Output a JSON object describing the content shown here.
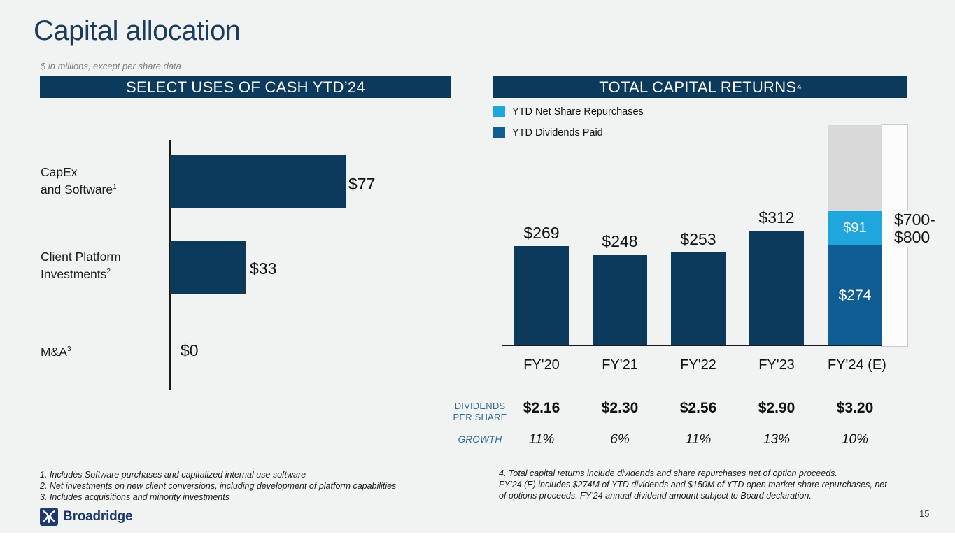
{
  "slide": {
    "title": "Capital allocation",
    "subtitle": "$ in millions, except per share data"
  },
  "left_panel": {
    "header": "SELECT USES OF CASH YTD’24",
    "rows": [
      {
        "label_line1": "CapEx",
        "label_line2": "and Software",
        "sup": "1",
        "value": 77,
        "value_label": "$77"
      },
      {
        "label_line1": "Client Platform",
        "label_line2": "Investments",
        "sup": "2",
        "value": 33,
        "value_label": "$33"
      },
      {
        "label_line1": "M&A",
        "sup": "3",
        "value": 0,
        "value_label": "$0"
      }
    ],
    "footnotes": "1. Includes Software purchases and capitalized internal use software\n2. Net investments on new client conversions, including development of platform capabilities\n3. Includes acquisitions and minority investments"
  },
  "right_panel": {
    "header": "TOTAL CAPITAL RETURNS",
    "header_sup": "4",
    "legend": [
      {
        "label": "YTD Net Share Repurchases",
        "color": "#1FA6DC"
      },
      {
        "label": "YTD Dividends Paid",
        "color": "#0F5D92"
      }
    ],
    "bars": [
      {
        "category": "FY'20",
        "total": 269,
        "total_label": "$269"
      },
      {
        "category": "FY'21",
        "total": 248,
        "total_label": "$248"
      },
      {
        "category": "FY'22",
        "total": 253,
        "total_label": "$253"
      },
      {
        "category": "FY'23",
        "total": 312,
        "total_label": "$312"
      },
      {
        "category": "FY'24 (E)",
        "dividends": 274,
        "dividends_label": "$274",
        "repurchases": 91,
        "repurchases_label": "$91"
      }
    ],
    "estimate_label": "$700-\n$800",
    "table": {
      "row1_label": "DIVIDENDS\nPER SHARE",
      "row2_label": "GROWTH",
      "dividends_per_share": [
        "$2.16",
        "$2.30",
        "$2.56",
        "$2.90",
        "$3.20"
      ],
      "growth": [
        "11%",
        "6%",
        "11%",
        "13%",
        "10%"
      ]
    },
    "footnote": "4. Total capital returns include dividends and share repurchases net of option proceeds.\nFY’24 (E) includes $274M of YTD dividends and $150M of YTD open market share repurchases, net\nof options proceeds. FY’24 annual dividend amount subject to Board declaration."
  },
  "footer": {
    "logo_text": "Broadridge",
    "page_number": "15"
  },
  "colors": {
    "slide_background": "#F1F2F2",
    "navy": "#0C3A5C",
    "title_navy": "#1A3C5F",
    "dividends_blue": "#0F5D92",
    "repurchases_light_blue": "#1FA6DC",
    "estimate_gray": "#D9D9D9",
    "table_label_blue": "#2E6C91",
    "logo_navy": "#1E3A6D"
  },
  "chart_data": [
    {
      "type": "bar",
      "orientation": "horizontal",
      "title": "SELECT USES OF CASH YTD’24",
      "categories": [
        "CapEx and Software",
        "Client Platform Investments",
        "M&A"
      ],
      "values": [
        77,
        33,
        0
      ],
      "data_labels": [
        "$77",
        "$33",
        "$0"
      ],
      "unit": "USD millions",
      "grid": false
    },
    {
      "type": "bar",
      "stacked": true,
      "title": "TOTAL CAPITAL RETURNS",
      "categories": [
        "FY'20",
        "FY'21",
        "FY'22",
        "FY'23",
        "FY'24 (E)"
      ],
      "series": [
        {
          "name": "Total capital returns",
          "color": "#0C3A5C",
          "values": [
            269,
            248,
            253,
            312,
            null
          ]
        },
        {
          "name": "YTD Dividends Paid",
          "color": "#0F5D92",
          "values": [
            null,
            null,
            null,
            null,
            274
          ]
        },
        {
          "name": "YTD Net Share Repurchases",
          "color": "#1FA6DC",
          "values": [
            null,
            null,
            null,
            null,
            91
          ]
        }
      ],
      "data_labels": [
        "$269",
        "$248",
        "$253",
        "$312",
        "$274 + $91"
      ],
      "annotations": {
        "fy24_estimate_range": "$700-$800"
      },
      "legend_position": "top-left",
      "unit": "USD millions",
      "grid": false,
      "table_rows": [
        {
          "label": "DIVIDENDS PER SHARE",
          "values": [
            "$2.16",
            "$2.30",
            "$2.56",
            "$2.90",
            "$3.20"
          ]
        },
        {
          "label": "GROWTH",
          "values": [
            "11%",
            "6%",
            "11%",
            "13%",
            "10%"
          ]
        }
      ]
    }
  ]
}
